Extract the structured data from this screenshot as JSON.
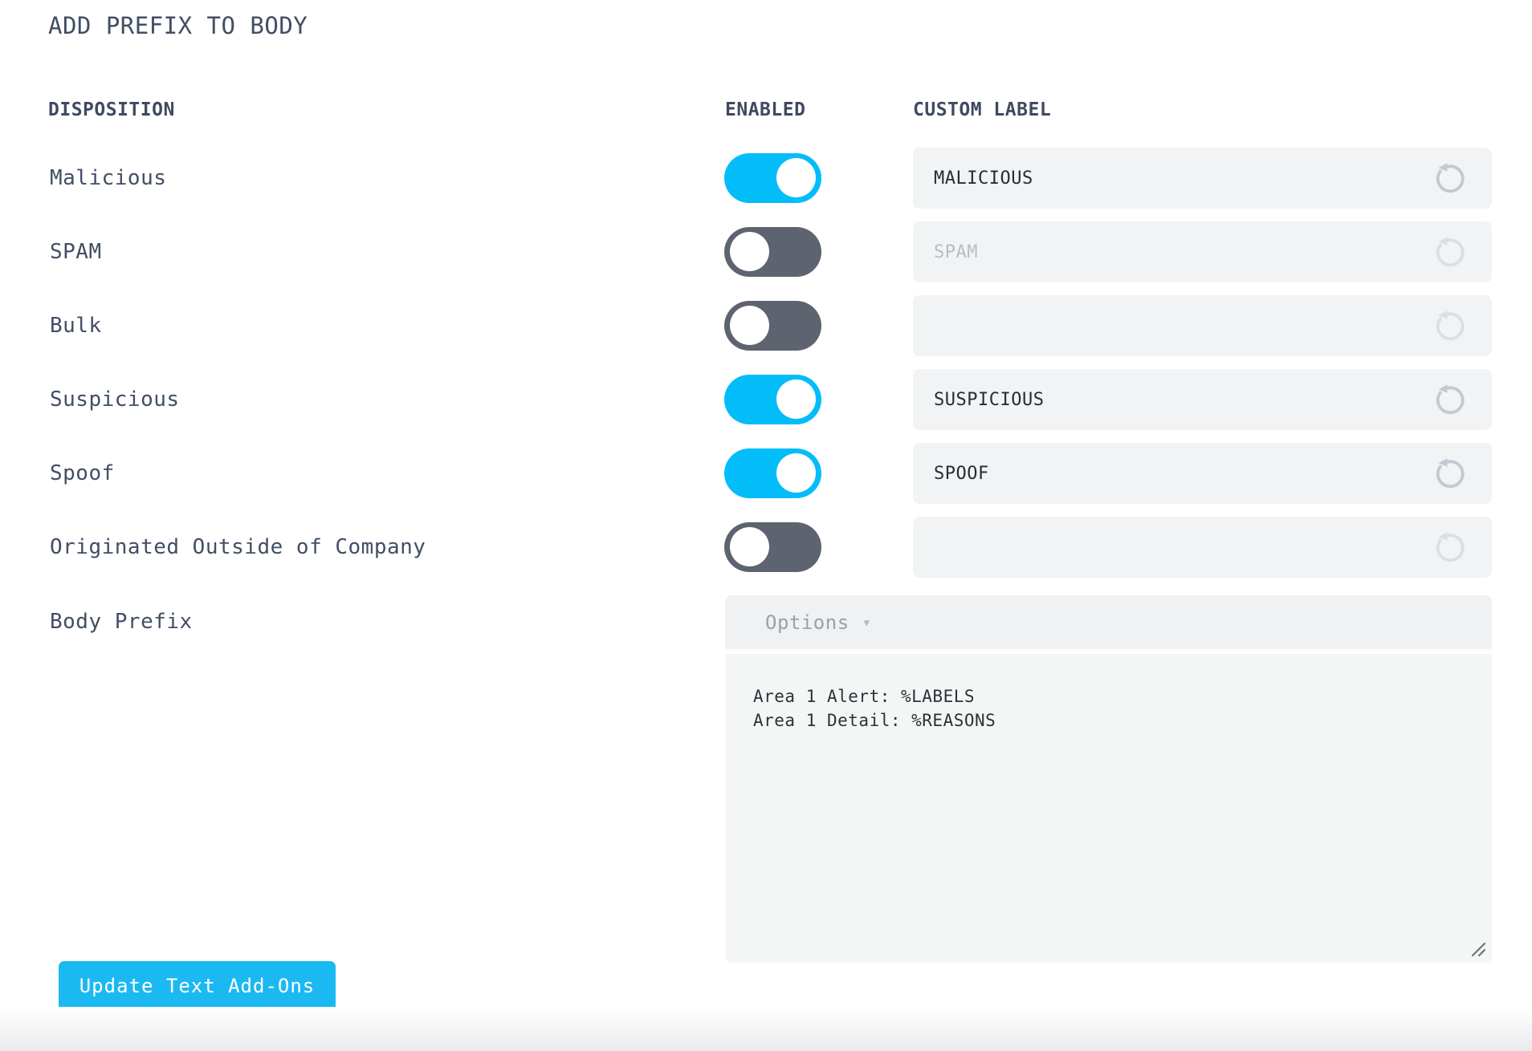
{
  "page": {
    "title": "ADD PREFIX TO BODY"
  },
  "table": {
    "headers": {
      "disposition": "DISPOSITION",
      "enabled": "ENABLED",
      "custom_label": "CUSTOM LABEL"
    },
    "rows": [
      {
        "label": "Malicious",
        "enabled": true,
        "value": "MALICIOUS",
        "placeholder": ""
      },
      {
        "label": "SPAM",
        "enabled": false,
        "value": "",
        "placeholder": "SPAM"
      },
      {
        "label": "Bulk",
        "enabled": false,
        "value": "",
        "placeholder": ""
      },
      {
        "label": "Suspicious",
        "enabled": true,
        "value": "SUSPICIOUS",
        "placeholder": ""
      },
      {
        "label": "Spoof",
        "enabled": true,
        "value": "SPOOF",
        "placeholder": ""
      },
      {
        "label": "Originated Outside of Company",
        "enabled": false,
        "value": "",
        "placeholder": ""
      }
    ]
  },
  "body_prefix": {
    "label": "Body Prefix",
    "options_label": "Options",
    "caret_icon": "▾",
    "textarea_value": "Area 1 Alert: %LABELS\nArea 1 Detail: %REASONS"
  },
  "actions": {
    "update_button": "Update Text Add-Ons"
  },
  "colors": {
    "accent_cyan": "#03bdf9",
    "toggle_off_gray": "#5e6370",
    "field_bg": "#f1f3f4",
    "text_slate": "#424e64",
    "field_text": "#272c33",
    "placeholder_text": "#b7bdc4",
    "reset_icon_active": "#c2c9d0",
    "reset_icon_faded": "#dadfe4",
    "button_bg": "#1bb9f2"
  }
}
